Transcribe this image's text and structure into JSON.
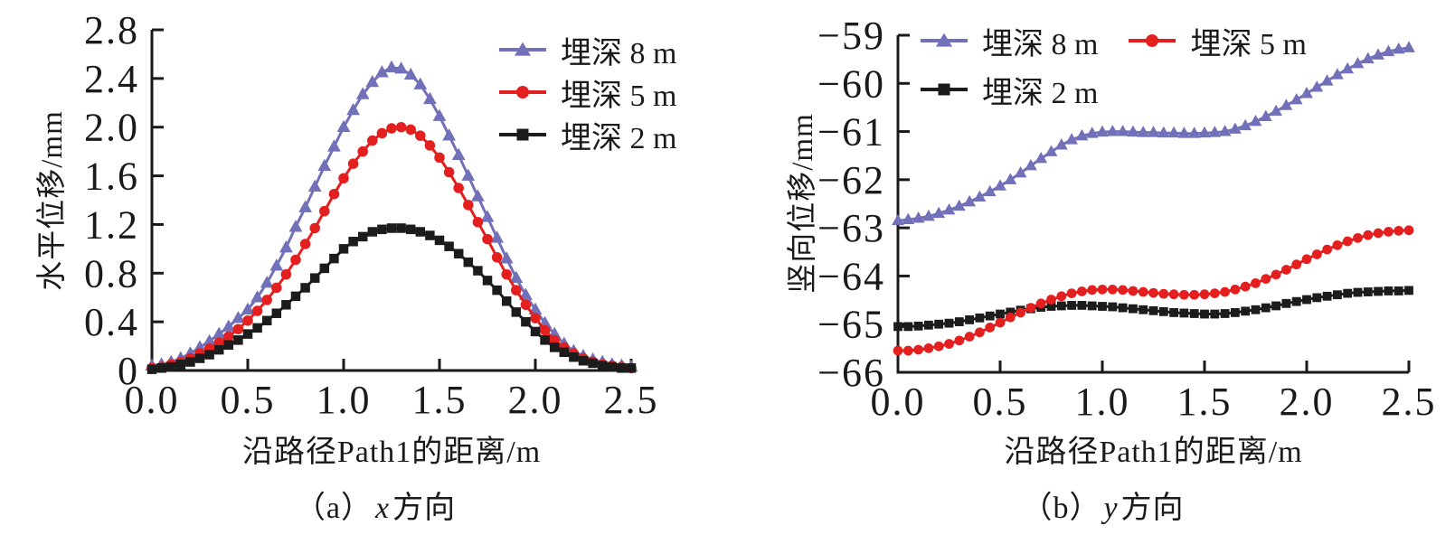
{
  "page": {
    "background": "#ffffff",
    "text_color": "#1a1a1a",
    "axis_color": "#1a1a1a"
  },
  "chart_data": [
    {
      "type": "line",
      "caption": {
        "prefix": "（a）",
        "variable": "x",
        "suffix": "方向"
      },
      "xlabel": "沿路径Path1的距离/m",
      "ylabel": "水平位移/mm",
      "xlim": [
        0,
        2.5
      ],
      "ylim": [
        0,
        2.8
      ],
      "grid": false,
      "legend_position": "upper-right-vertical",
      "xticks": {
        "values": [
          0,
          0.5,
          1.0,
          1.5,
          2.0,
          2.5
        ],
        "labels": [
          "0.0",
          "0.5",
          "1.0",
          "1.5",
          "2.0",
          "2.5"
        ]
      },
      "yticks": {
        "values": [
          0,
          0.4,
          0.8,
          1.2,
          1.6,
          2.0,
          2.4,
          2.8
        ],
        "labels": [
          "0",
          "0.4",
          "0.8",
          "1.2",
          "1.6",
          "2.0",
          "2.4",
          "2.8"
        ]
      },
      "x": [
        0,
        0.05,
        0.1,
        0.15,
        0.2,
        0.25,
        0.3,
        0.35,
        0.4,
        0.45,
        0.5,
        0.55,
        0.6,
        0.65,
        0.7,
        0.75,
        0.8,
        0.85,
        0.9,
        0.95,
        1.0,
        1.05,
        1.1,
        1.15,
        1.2,
        1.25,
        1.3,
        1.35,
        1.4,
        1.45,
        1.5,
        1.55,
        1.6,
        1.65,
        1.7,
        1.75,
        1.8,
        1.85,
        1.9,
        1.95,
        2.0,
        2.05,
        2.1,
        2.15,
        2.2,
        2.25,
        2.3,
        2.35,
        2.4,
        2.45,
        2.5
      ],
      "series": [
        {
          "name": "埋深 8 m",
          "color": "#7170b8",
          "marker": "triangle",
          "values": [
            0.04,
            0.05,
            0.07,
            0.1,
            0.14,
            0.19,
            0.24,
            0.3,
            0.36,
            0.43,
            0.5,
            0.6,
            0.72,
            0.86,
            1.01,
            1.18,
            1.34,
            1.51,
            1.68,
            1.84,
            2.0,
            2.14,
            2.27,
            2.37,
            2.45,
            2.49,
            2.48,
            2.43,
            2.35,
            2.23,
            2.09,
            1.93,
            1.77,
            1.6,
            1.43,
            1.26,
            1.09,
            0.92,
            0.76,
            0.62,
            0.5,
            0.39,
            0.3,
            0.22,
            0.16,
            0.12,
            0.09,
            0.07,
            0.05,
            0.04,
            0.03
          ]
        },
        {
          "name": "埋深 5 m",
          "color": "#e3201f",
          "marker": "circle",
          "values": [
            0.02,
            0.03,
            0.05,
            0.07,
            0.1,
            0.14,
            0.18,
            0.23,
            0.28,
            0.34,
            0.41,
            0.49,
            0.58,
            0.68,
            0.79,
            0.91,
            1.04,
            1.17,
            1.31,
            1.45,
            1.58,
            1.7,
            1.8,
            1.89,
            1.95,
            1.99,
            2.0,
            1.98,
            1.93,
            1.85,
            1.75,
            1.63,
            1.5,
            1.36,
            1.22,
            1.08,
            0.93,
            0.79,
            0.66,
            0.54,
            0.43,
            0.33,
            0.25,
            0.19,
            0.14,
            0.1,
            0.07,
            0.05,
            0.04,
            0.03,
            0.02
          ]
        },
        {
          "name": "埋深 2 m",
          "color": "#1c1c1c",
          "marker": "square",
          "values": [
            0.01,
            0.02,
            0.03,
            0.05,
            0.07,
            0.1,
            0.13,
            0.17,
            0.21,
            0.25,
            0.3,
            0.35,
            0.41,
            0.47,
            0.54,
            0.61,
            0.68,
            0.76,
            0.84,
            0.92,
            1.0,
            1.06,
            1.1,
            1.14,
            1.16,
            1.17,
            1.17,
            1.16,
            1.14,
            1.11,
            1.07,
            1.02,
            0.96,
            0.89,
            0.82,
            0.74,
            0.66,
            0.57,
            0.48,
            0.4,
            0.32,
            0.25,
            0.19,
            0.15,
            0.11,
            0.08,
            0.06,
            0.04,
            0.03,
            0.02,
            0.02
          ]
        }
      ]
    },
    {
      "type": "line",
      "caption": {
        "prefix": "（b）",
        "variable": "y",
        "suffix": "方向"
      },
      "xlabel": "沿路径Path1的距离/m",
      "ylabel": "竖向位移/mm",
      "xlim": [
        0,
        2.5
      ],
      "ylim": [
        -66,
        -59
      ],
      "grid": false,
      "legend_position": "upper-left-two-columns",
      "xticks": {
        "values": [
          0,
          0.5,
          1.0,
          1.5,
          2.0,
          2.5
        ],
        "labels": [
          "0.0",
          "0.5",
          "1.0",
          "1.5",
          "2.0",
          "2.5"
        ]
      },
      "yticks": {
        "values": [
          -66,
          -65,
          -64,
          -63,
          -62,
          -61,
          -60,
          -59
        ],
        "labels": [
          "−66",
          "−65",
          "−64",
          "−63",
          "−62",
          "−61",
          "−60",
          "−59"
        ]
      },
      "x": [
        0,
        0.05,
        0.1,
        0.15,
        0.2,
        0.25,
        0.3,
        0.35,
        0.4,
        0.45,
        0.5,
        0.55,
        0.6,
        0.65,
        0.7,
        0.75,
        0.8,
        0.85,
        0.9,
        0.95,
        1.0,
        1.05,
        1.1,
        1.15,
        1.2,
        1.25,
        1.3,
        1.35,
        1.4,
        1.45,
        1.5,
        1.55,
        1.6,
        1.65,
        1.7,
        1.75,
        1.8,
        1.85,
        1.9,
        1.95,
        2.0,
        2.05,
        2.1,
        2.15,
        2.2,
        2.25,
        2.3,
        2.35,
        2.4,
        2.45,
        2.5
      ],
      "series": [
        {
          "name": "埋深 8 m",
          "color": "#7170b8",
          "marker": "triangle",
          "values": [
            -62.85,
            -62.83,
            -62.8,
            -62.76,
            -62.7,
            -62.63,
            -62.55,
            -62.46,
            -62.36,
            -62.25,
            -62.13,
            -62.0,
            -61.86,
            -61.71,
            -61.56,
            -61.42,
            -61.28,
            -61.17,
            -61.09,
            -61.04,
            -61.01,
            -61.0,
            -61.0,
            -61.01,
            -61.02,
            -61.02,
            -61.03,
            -61.03,
            -61.04,
            -61.04,
            -61.03,
            -61.02,
            -61.0,
            -60.95,
            -60.88,
            -60.79,
            -60.69,
            -60.58,
            -60.46,
            -60.34,
            -60.21,
            -60.08,
            -59.95,
            -59.82,
            -59.7,
            -59.59,
            -59.49,
            -59.41,
            -59.34,
            -59.29,
            -59.26
          ]
        },
        {
          "name": "埋深 5 m",
          "color": "#e3201f",
          "marker": "circle",
          "values": [
            -65.55,
            -65.55,
            -65.53,
            -65.5,
            -65.46,
            -65.41,
            -65.34,
            -65.26,
            -65.17,
            -65.07,
            -64.97,
            -64.86,
            -64.76,
            -64.66,
            -64.57,
            -64.49,
            -64.42,
            -64.36,
            -64.32,
            -64.29,
            -64.28,
            -64.28,
            -64.29,
            -64.31,
            -64.33,
            -64.35,
            -64.37,
            -64.38,
            -64.39,
            -64.39,
            -64.38,
            -64.36,
            -64.33,
            -64.28,
            -64.22,
            -64.15,
            -64.06,
            -63.97,
            -63.87,
            -63.76,
            -63.65,
            -63.55,
            -63.45,
            -63.36,
            -63.28,
            -63.21,
            -63.15,
            -63.11,
            -63.08,
            -63.06,
            -63.05
          ]
        },
        {
          "name": "埋深 2 m",
          "color": "#1c1c1c",
          "marker": "square",
          "values": [
            -65.05,
            -65.05,
            -65.04,
            -65.02,
            -65.0,
            -64.98,
            -64.95,
            -64.91,
            -64.87,
            -64.83,
            -64.79,
            -64.75,
            -64.71,
            -64.68,
            -64.65,
            -64.63,
            -64.62,
            -64.61,
            -64.61,
            -64.62,
            -64.63,
            -64.64,
            -64.66,
            -64.68,
            -64.7,
            -64.72,
            -64.74,
            -64.76,
            -64.77,
            -64.78,
            -64.79,
            -64.79,
            -64.78,
            -64.76,
            -64.73,
            -64.7,
            -64.66,
            -64.62,
            -64.57,
            -64.53,
            -64.49,
            -64.45,
            -64.42,
            -64.39,
            -64.36,
            -64.34,
            -64.33,
            -64.32,
            -64.31,
            -64.31,
            -64.3
          ]
        }
      ]
    }
  ]
}
